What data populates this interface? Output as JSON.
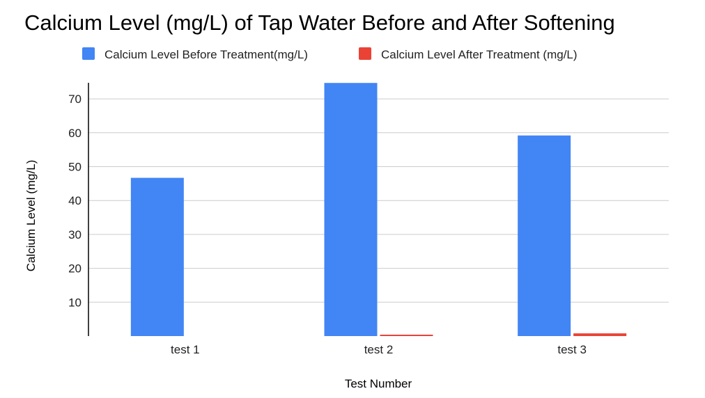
{
  "chart_data": {
    "type": "bar",
    "title": "Calcium Level (mg/L) of Tap Water Before and After Softening",
    "xlabel": "Test Number",
    "ylabel": "Calcium Level (mg/L)",
    "categories": [
      "test 1",
      "test 2",
      "test 3"
    ],
    "series": [
      {
        "name": "Calcium Level Before Treatment(mg/L)",
        "color": "#4285f4",
        "values": [
          46.7,
          74.7,
          59.2
        ]
      },
      {
        "name": "Calcium Level After Treatment (mg/L)",
        "color": "#ea4335",
        "values": [
          0,
          0.4,
          0.8
        ]
      }
    ],
    "ylim": [
      0,
      75
    ],
    "yticks": [
      10,
      20,
      30,
      40,
      50,
      60,
      70
    ],
    "grid": true,
    "legend_position": "top"
  }
}
